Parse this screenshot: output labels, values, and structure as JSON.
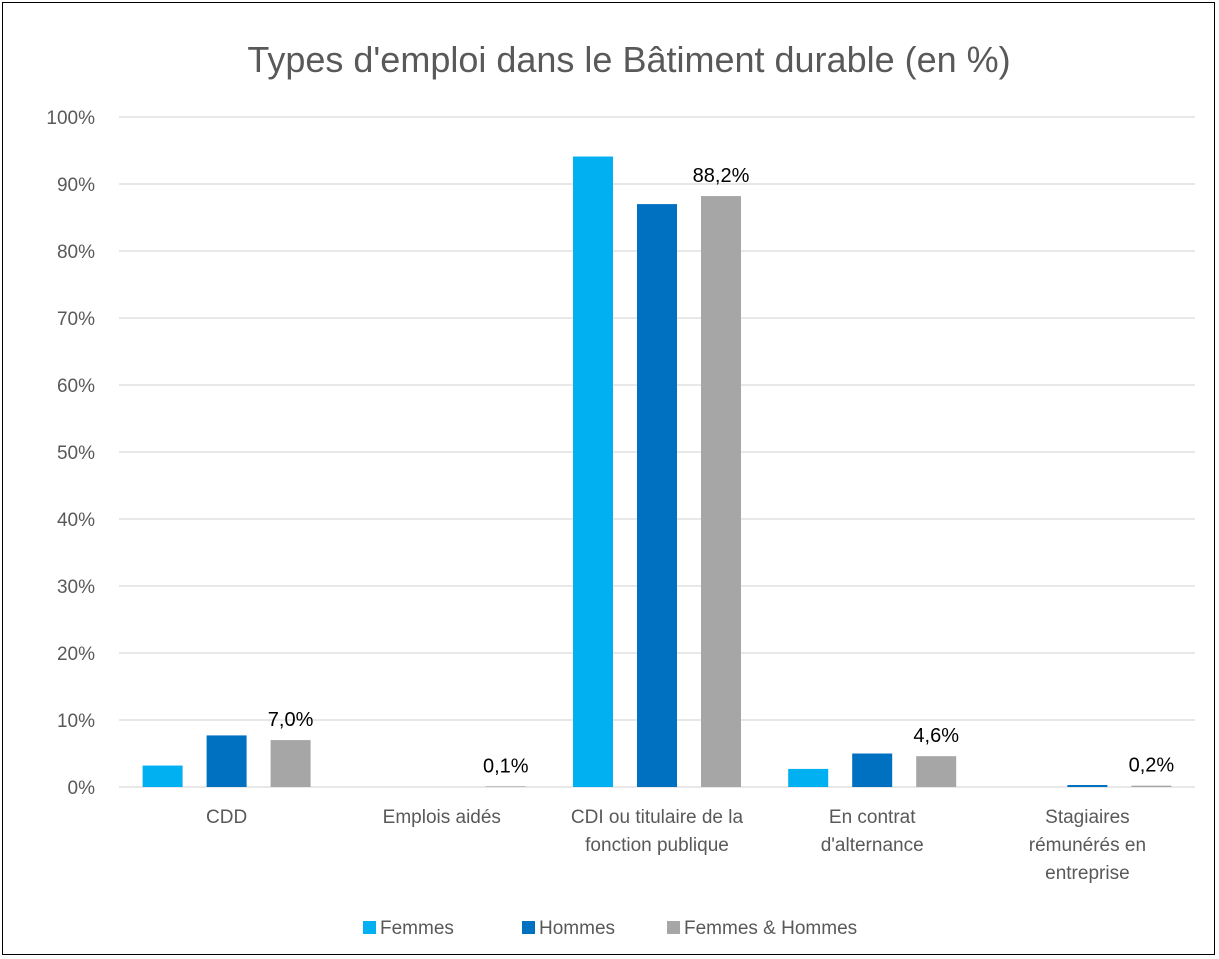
{
  "chart_data": {
    "type": "bar",
    "title": "Types d'emploi dans le Bâtiment durable (en %)",
    "xlabel": "",
    "ylabel": "",
    "ylim": [
      0,
      100
    ],
    "y_ticks": [
      0,
      10,
      20,
      30,
      40,
      50,
      60,
      70,
      80,
      90,
      100
    ],
    "y_tick_labels": [
      "0%",
      "10%",
      "20%",
      "30%",
      "40%",
      "50%",
      "60%",
      "70%",
      "80%",
      "90%",
      "100%"
    ],
    "grid": true,
    "legend_position": "bottom",
    "categories": [
      [
        "CDD"
      ],
      [
        "Emplois aidés"
      ],
      [
        "CDI ou titulaire de la",
        "fonction publique"
      ],
      [
        "En contrat",
        "d'alternance"
      ],
      [
        "Stagiaires",
        "rémunérés en",
        "entreprise"
      ]
    ],
    "series": [
      {
        "name": "Femmes",
        "color": "#00b0f0",
        "values": [
          3.2,
          0.0,
          94.1,
          2.7,
          0.0
        ],
        "data_labels": [
          "",
          "",
          "",
          "",
          ""
        ]
      },
      {
        "name": "Hommes",
        "color": "#0070c0",
        "values": [
          7.7,
          0.0,
          87.0,
          5.0,
          0.3
        ],
        "data_labels": [
          "",
          "",
          "",
          "",
          ""
        ]
      },
      {
        "name": "Femmes & Hommes",
        "color": "#a6a6a6",
        "values": [
          7.0,
          0.1,
          88.2,
          4.6,
          0.2
        ],
        "data_labels": [
          "7,0%",
          "0,1%",
          "88,2%",
          "4,6%",
          "0,2%"
        ]
      }
    ]
  }
}
